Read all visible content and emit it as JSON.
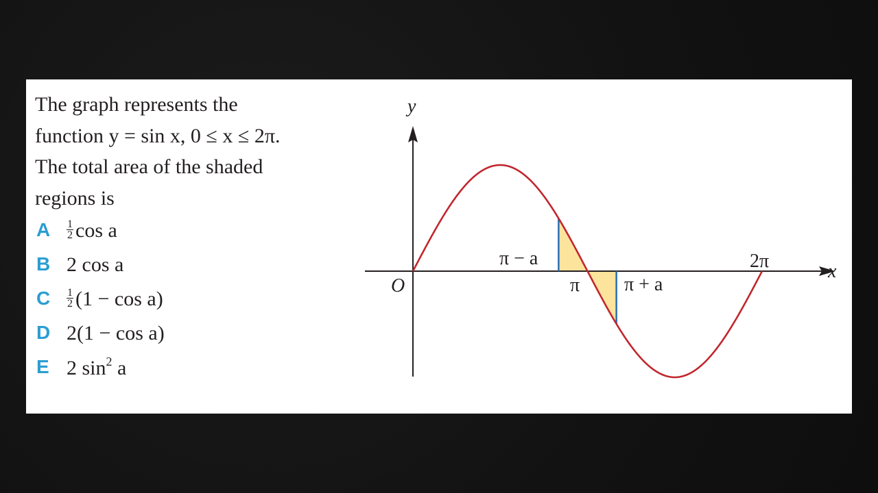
{
  "question": {
    "line1": "The graph represents the",
    "line2": "function y = sin x, 0 ≤ x ≤ 2π.",
    "line3": "The total area of the shaded",
    "line4": "regions is"
  },
  "options": [
    {
      "letter": "A",
      "num": "1",
      "den": "2",
      "rest": "cos a"
    },
    {
      "letter": "B",
      "text": "2 cos a"
    },
    {
      "letter": "C",
      "num": "1",
      "den": "2",
      "rest": "(1 − cos a)"
    },
    {
      "letter": "D",
      "text": "2(1 − cos a)"
    },
    {
      "letter": "E",
      "pre": "2 sin",
      "sup": "2",
      "post": " a"
    }
  ],
  "graph": {
    "y_label": "y",
    "x_label": "x",
    "origin_label": "O",
    "pi_label": "π",
    "two_pi_label": "2π",
    "pi_minus_a_label": "π − a",
    "pi_plus_a_label": "π + a",
    "curve_color": "#c0272d",
    "shade_color": "#fde49c",
    "boundary_color": "#2b6fb0",
    "axis_color": "#231f20"
  },
  "chart_data": {
    "type": "line",
    "title": "",
    "xlabel": "x",
    "ylabel": "y",
    "function": "y = sin x",
    "x_domain": [
      0,
      6.2832
    ],
    "series": [
      {
        "x": [
          0,
          1.5708,
          3.1416,
          4.7124,
          6.2832
        ],
        "values": [
          0,
          1,
          0,
          -1,
          0
        ]
      }
    ],
    "shaded_interval": {
      "from_label": "π − a",
      "to_label": "π + a"
    },
    "x_tick_labels": [
      "O",
      "π",
      "2π"
    ]
  }
}
